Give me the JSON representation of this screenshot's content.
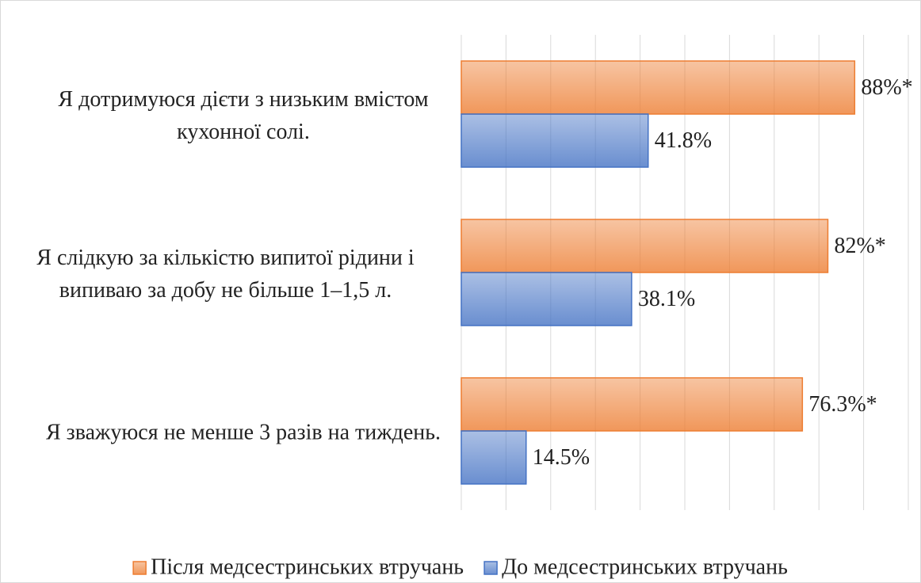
{
  "chart_data": {
    "type": "barh",
    "categories": [
      "Я дотримуюся дієти з низьким вмістом кухонної солі.",
      "Я слідкую за кількістю випитої рідини і випиваю за добу не більше 1–1,5 л.",
      "Я зважуюся не менше 3 разів на тиждень."
    ],
    "series": [
      {
        "name": "Після медсестринських втручань",
        "color": "#ed7d31",
        "values": [
          88,
          82,
          76.3
        ],
        "value_labels": [
          "88%*",
          "82%*",
          "76.3%*"
        ]
      },
      {
        "name": "До медсестринських втручань",
        "color": "#4472c4",
        "values": [
          41.8,
          38.1,
          14.5
        ],
        "value_labels": [
          "41.8%",
          "38.1%",
          "14.5%"
        ]
      }
    ],
    "xlim": [
      0,
      100
    ],
    "xticks": [
      0,
      10,
      20,
      30,
      40,
      50,
      60,
      70,
      80,
      90,
      100
    ],
    "grid": true,
    "legend": "bottom"
  }
}
